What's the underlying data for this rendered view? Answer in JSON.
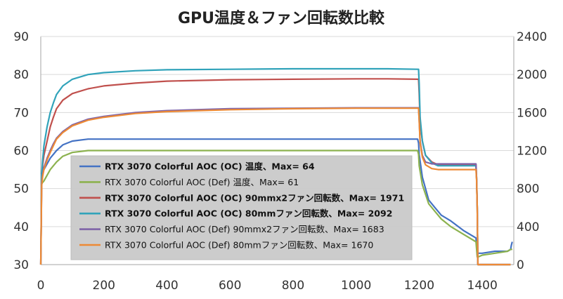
{
  "chart_data": {
    "type": "line",
    "title": "GPU温度＆ファン回転数比較",
    "xlabel": "",
    "ylabel": "",
    "xlim": [
      0,
      1500
    ],
    "ylim": [
      30,
      90
    ],
    "y2lim": [
      0,
      2400
    ],
    "x_ticks": [
      "0",
      "200",
      "400",
      "600",
      "800",
      "1000",
      "1200",
      "1400"
    ],
    "y_ticks": [
      "30",
      "40",
      "50",
      "60",
      "70",
      "80",
      "90"
    ],
    "y2_ticks": [
      "0",
      "400",
      "800",
      "1200",
      "1600",
      "2000",
      "2400"
    ],
    "grid": "horizontal",
    "legend_position": "inside-lower-left",
    "series": [
      {
        "name": "RTX 3070 Colorful AOC (OC) 温度、Max= 64",
        "axis": "left",
        "color": "#4472C4",
        "bold": true,
        "x": [
          0,
          2,
          5,
          10,
          20,
          30,
          50,
          70,
          100,
          150,
          200,
          300,
          400,
          600,
          800,
          1000,
          1100,
          1195,
          1198,
          1200,
          1210,
          1230,
          1250,
          1270,
          1300,
          1340,
          1380,
          1384,
          1386,
          1400,
          1440,
          1480,
          1490,
          1492,
          1495
        ],
        "values": [
          54,
          54,
          54.5,
          55,
          56.5,
          58,
          60,
          61.5,
          62.5,
          63,
          63,
          63,
          63,
          63,
          63,
          63,
          63,
          63,
          62,
          59,
          53,
          47,
          45,
          43,
          41.5,
          39,
          37,
          32.5,
          33,
          33,
          33.5,
          33.5,
          34,
          35,
          36
        ]
      },
      {
        "name": "RTX 3070 Colorful AOC (Def) 温度、Max= 61",
        "axis": "left",
        "color": "#8CB24F",
        "bold": false,
        "x": [
          0,
          2,
          5,
          10,
          20,
          30,
          50,
          70,
          100,
          150,
          200,
          300,
          400,
          600,
          800,
          1000,
          1100,
          1195,
          1198,
          1200,
          1210,
          1230,
          1250,
          1270,
          1300,
          1340,
          1380,
          1384,
          1386,
          1400,
          1440,
          1480,
          1490,
          1492,
          1495
        ],
        "values": [
          51,
          51,
          51.5,
          52,
          53.5,
          55,
          57,
          58.5,
          59.5,
          60,
          60,
          60,
          60,
          60,
          60,
          60,
          60,
          60,
          59,
          56,
          51,
          46,
          44,
          42,
          40,
          38,
          36,
          32,
          32,
          32.5,
          33,
          33.5,
          34,
          34,
          34
        ]
      },
      {
        "name": "RTX 3070 Colorful AOC (OC) 90mmx2ファン回転数、Max= 1971",
        "axis": "right",
        "color": "#C0504D",
        "bold": true,
        "x": [
          0,
          3,
          6,
          10,
          20,
          30,
          40,
          50,
          70,
          100,
          150,
          200,
          300,
          400,
          600,
          800,
          1000,
          1100,
          1195,
          1198,
          1200,
          1203,
          1210,
          1220,
          1240,
          1260,
          1300,
          1340,
          1380,
          1382,
          1384,
          1386,
          1400,
          1450,
          1490
        ],
        "values": [
          0,
          900,
          1050,
          1150,
          1300,
          1450,
          1550,
          1640,
          1730,
          1800,
          1850,
          1880,
          1910,
          1930,
          1945,
          1950,
          1955,
          1955,
          1950,
          1950,
          1800,
          1500,
          1300,
          1150,
          1080,
          1050,
          1050,
          1050,
          1050,
          900,
          600,
          0,
          0,
          0,
          0
        ]
      },
      {
        "name": "RTX 3070 Colorful AOC (OC) 80mmファン回転数、Max= 2092",
        "axis": "right",
        "color": "#31A3BA",
        "bold": true,
        "x": [
          0,
          3,
          6,
          10,
          20,
          30,
          40,
          50,
          70,
          100,
          150,
          200,
          300,
          400,
          600,
          800,
          1000,
          1100,
          1195,
          1198,
          1200,
          1203,
          1210,
          1220,
          1240,
          1260,
          1300,
          1340,
          1380,
          1382,
          1384,
          1386,
          1400,
          1450,
          1490
        ],
        "values": [
          0,
          950,
          1100,
          1250,
          1450,
          1600,
          1700,
          1790,
          1880,
          1950,
          2000,
          2020,
          2040,
          2050,
          2055,
          2060,
          2060,
          2060,
          2055,
          2055,
          1900,
          1550,
          1300,
          1150,
          1070,
          1040,
          1040,
          1040,
          1040,
          900,
          600,
          0,
          0,
          0,
          0
        ]
      },
      {
        "name": "RTX 3070 Colorful AOC (Def) 90mmx2ファン回転数、Max= 1683",
        "axis": "right",
        "color": "#7F64A8",
        "bold": false,
        "x": [
          0,
          3,
          6,
          10,
          20,
          30,
          40,
          50,
          70,
          100,
          150,
          200,
          300,
          400,
          600,
          800,
          1000,
          1100,
          1195,
          1198,
          1200,
          1203,
          1210,
          1220,
          1240,
          1260,
          1300,
          1340,
          1380,
          1382,
          1384,
          1386,
          1400,
          1450,
          1490
        ],
        "values": [
          0,
          850,
          950,
          1020,
          1120,
          1200,
          1270,
          1330,
          1400,
          1470,
          1530,
          1560,
          1600,
          1620,
          1640,
          1645,
          1650,
          1650,
          1650,
          1650,
          1520,
          1300,
          1150,
          1080,
          1060,
          1060,
          1060,
          1060,
          1060,
          900,
          600,
          0,
          0,
          0,
          0
        ]
      },
      {
        "name": "RTX 3070 Colorful AOC (Def) 80mmファン回転数、Max= 1670",
        "axis": "right",
        "color": "#ED8A35",
        "bold": false,
        "x": [
          0,
          3,
          6,
          10,
          20,
          30,
          40,
          50,
          70,
          100,
          150,
          200,
          300,
          400,
          600,
          800,
          1000,
          1100,
          1195,
          1198,
          1200,
          1203,
          1210,
          1220,
          1240,
          1260,
          1300,
          1340,
          1380,
          1382,
          1384,
          1386,
          1400,
          1450,
          1490
        ],
        "values": [
          0,
          830,
          930,
          1000,
          1100,
          1180,
          1250,
          1320,
          1390,
          1460,
          1520,
          1550,
          1590,
          1610,
          1630,
          1640,
          1645,
          1645,
          1645,
          1645,
          1510,
          1280,
          1130,
          1050,
          1010,
          1000,
          1000,
          1000,
          1000,
          880,
          600,
          0,
          0,
          0,
          0
        ]
      }
    ]
  }
}
